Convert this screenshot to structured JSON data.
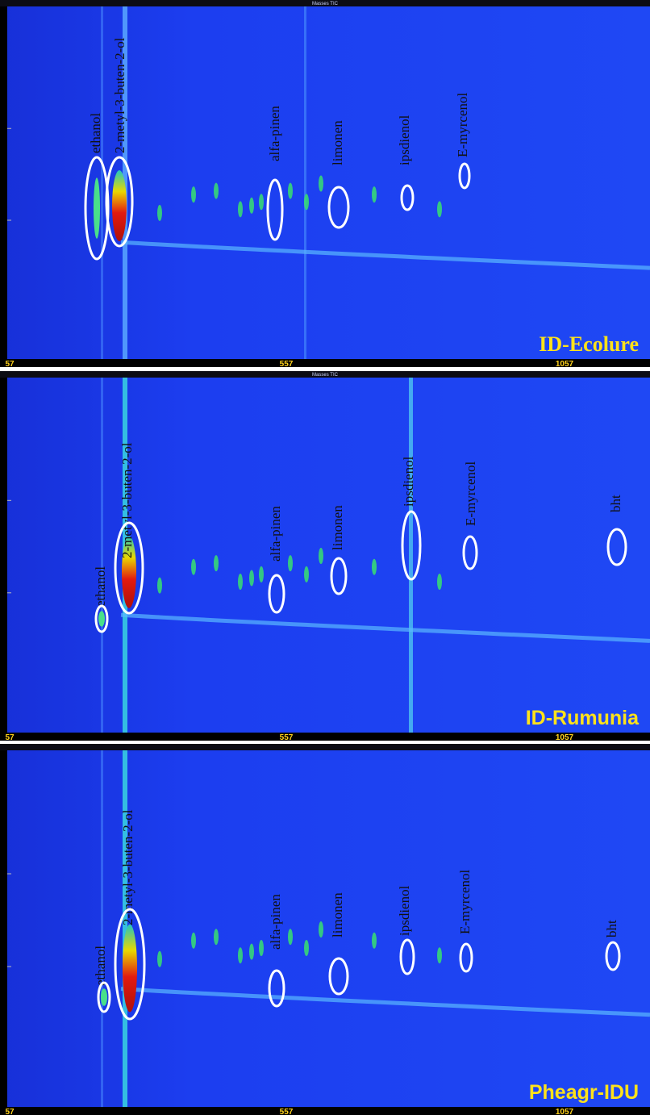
{
  "panels": [
    {
      "header": "Masses TIC",
      "sample": "ID-Ecolure",
      "x_labels": [
        "57",
        "557",
        "1057"
      ],
      "peaks": [
        "ethanol",
        "2-metyl-3-buten-2-ol",
        "alfa-pinen",
        "limonen",
        "ipsdienol",
        "E-myrcenol"
      ]
    },
    {
      "header": "Masses TIC",
      "sample": "ID-Rumunia",
      "x_labels": [
        "57",
        "557",
        "1057"
      ],
      "peaks": [
        "ethanol",
        "2-metyl-3-buten-2-ol",
        "alfa-pinen",
        "limonen",
        "ipsdienol",
        "E-myrcenol",
        "bht"
      ]
    },
    {
      "sample": "Pheagr-IDU",
      "x_labels": [
        "57",
        "557",
        "1057"
      ],
      "peaks": [
        "ethanol",
        "2-metyl-3-buten-2-ol",
        "alfa-pinen",
        "limonen",
        "ipsdienol",
        "E-myrcenol",
        "bht"
      ]
    }
  ]
}
